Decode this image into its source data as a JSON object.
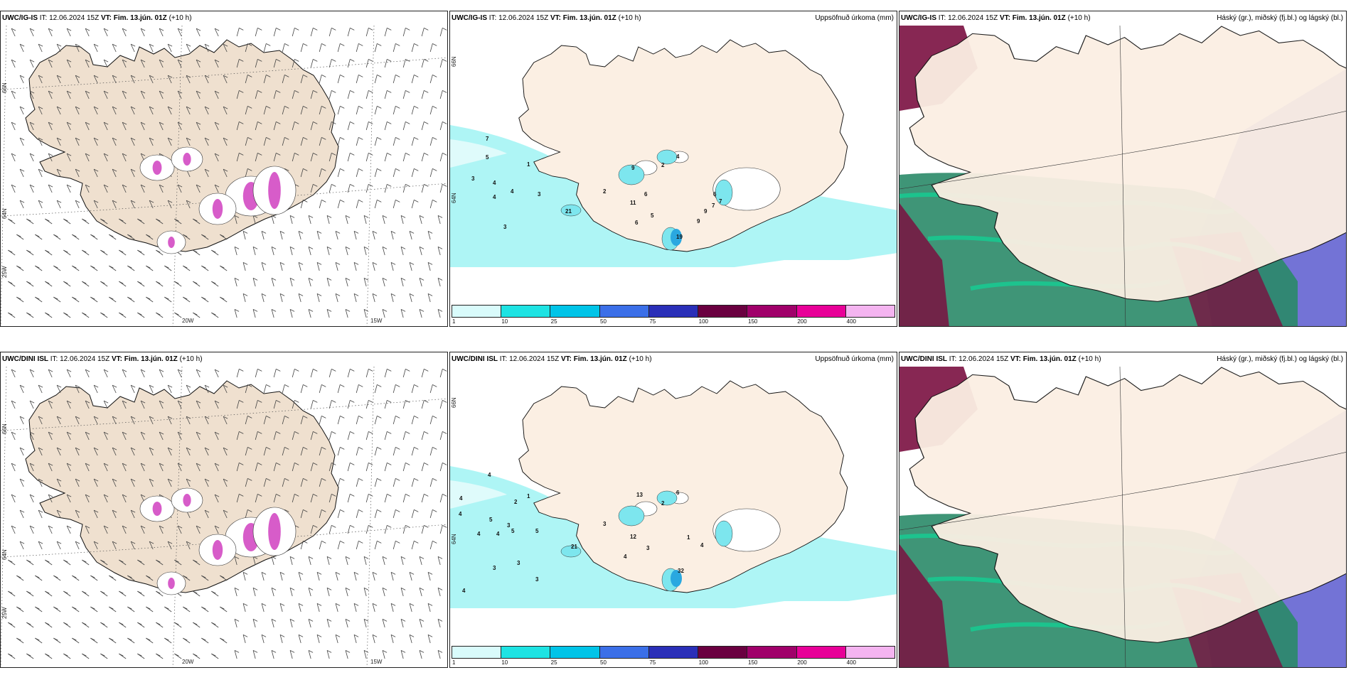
{
  "rows": [
    {
      "model": "UWC/IG-IS",
      "it_label": "IT:",
      "it_value": "12.06.2024 15Z",
      "vt_label": "VT:",
      "vt_value": "Fim. 13.jún. 01Z",
      "lead": "(+10 h)",
      "panel2_title": "Uppsöfnuð úrkoma (mm)",
      "panel3_title": "Háský (gr.), miðský (fj.bl.) og lágský (bl.)",
      "lat_labels": [
        "66N",
        "64N",
        "25W"
      ],
      "lon_labels": [
        "20W",
        "15W"
      ],
      "precip_numbers": [
        {
          "v": "7",
          "x": 50,
          "y": 162
        },
        {
          "v": "5",
          "x": 50,
          "y": 188
        },
        {
          "v": "1",
          "x": 108,
          "y": 198
        },
        {
          "v": "3",
          "x": 30,
          "y": 218
        },
        {
          "v": "4",
          "x": 60,
          "y": 224
        },
        {
          "v": "4",
          "x": 60,
          "y": 244
        },
        {
          "v": "4",
          "x": 85,
          "y": 236
        },
        {
          "v": "3",
          "x": 123,
          "y": 240
        },
        {
          "v": "21",
          "x": 162,
          "y": 264
        },
        {
          "v": "3",
          "x": 75,
          "y": 286
        },
        {
          "v": "2",
          "x": 215,
          "y": 236
        },
        {
          "v": "11",
          "x": 253,
          "y": 252
        },
        {
          "v": "9",
          "x": 255,
          "y": 203
        },
        {
          "v": "4",
          "x": 318,
          "y": 187
        },
        {
          "v": "2",
          "x": 297,
          "y": 199
        },
        {
          "v": "6",
          "x": 273,
          "y": 240
        },
        {
          "v": "5",
          "x": 282,
          "y": 270
        },
        {
          "v": "6",
          "x": 260,
          "y": 280
        },
        {
          "v": "6",
          "x": 370,
          "y": 240
        },
        {
          "v": "9",
          "x": 357,
          "y": 264
        },
        {
          "v": "9",
          "x": 347,
          "y": 278
        },
        {
          "v": "7",
          "x": 368,
          "y": 256
        },
        {
          "v": "7",
          "x": 378,
          "y": 250
        },
        {
          "v": "19",
          "x": 318,
          "y": 300
        }
      ]
    },
    {
      "model": "UWC/DINI ISL",
      "it_label": "IT:",
      "it_value": "12.06.2024 15Z",
      "vt_label": "VT:",
      "vt_value": "Fim. 13.jún. 01Z",
      "lead": "(+10 h)",
      "panel2_title": "Uppsöfnuð úrkoma (mm)",
      "panel3_title": "Háský (gr.), miðský (fj.bl.) og lágský (bl.)",
      "lat_labels": [
        "66N",
        "64N",
        "25W"
      ],
      "lon_labels": [
        "20W",
        "15W"
      ],
      "precip_numbers": [
        {
          "v": "4",
          "x": 53,
          "y": 155
        },
        {
          "v": "4",
          "x": 13,
          "y": 188
        },
        {
          "v": "2",
          "x": 90,
          "y": 193
        },
        {
          "v": "1",
          "x": 108,
          "y": 185
        },
        {
          "v": "4",
          "x": 12,
          "y": 210
        },
        {
          "v": "5",
          "x": 55,
          "y": 218
        },
        {
          "v": "3",
          "x": 80,
          "y": 226
        },
        {
          "v": "4",
          "x": 38,
          "y": 238
        },
        {
          "v": "4",
          "x": 65,
          "y": 238
        },
        {
          "v": "5",
          "x": 86,
          "y": 234
        },
        {
          "v": "5",
          "x": 120,
          "y": 234
        },
        {
          "v": "21",
          "x": 170,
          "y": 256
        },
        {
          "v": "3",
          "x": 215,
          "y": 224
        },
        {
          "v": "12",
          "x": 253,
          "y": 242
        },
        {
          "v": "3",
          "x": 276,
          "y": 258
        },
        {
          "v": "4",
          "x": 244,
          "y": 270
        },
        {
          "v": "2",
          "x": 297,
          "y": 195
        },
        {
          "v": "13",
          "x": 262,
          "y": 183
        },
        {
          "v": "6",
          "x": 318,
          "y": 180
        },
        {
          "v": "1",
          "x": 333,
          "y": 243
        },
        {
          "v": "4",
          "x": 352,
          "y": 254
        },
        {
          "v": "3",
          "x": 60,
          "y": 286
        },
        {
          "v": "3",
          "x": 94,
          "y": 279
        },
        {
          "v": "3",
          "x": 120,
          "y": 302
        },
        {
          "v": "4",
          "x": 17,
          "y": 318
        },
        {
          "v": "32",
          "x": 320,
          "y": 290
        }
      ]
    }
  ],
  "legend": {
    "colors": [
      "#d9fbfb",
      "#1ee3e3",
      "#00c4e8",
      "#3b6fe8",
      "#2a2fb8",
      "#6a0040",
      "#a0006a",
      "#e80098",
      "#f4b4f0"
    ],
    "labels": [
      "1",
      "10",
      "25",
      "50",
      "75",
      "100",
      "150",
      "200",
      "400"
    ]
  },
  "colors": {
    "land": "#efe0cf",
    "land_light": "#fbefe3",
    "sea_precip": "#aef5f5",
    "coast": "#111111",
    "glacier_pink": "#d040c0",
    "cloud_high": "#7a1040",
    "cloud_mid": "#2a8a68",
    "cloud_low": "#5a5acf",
    "cloud_green": "#19c890"
  }
}
